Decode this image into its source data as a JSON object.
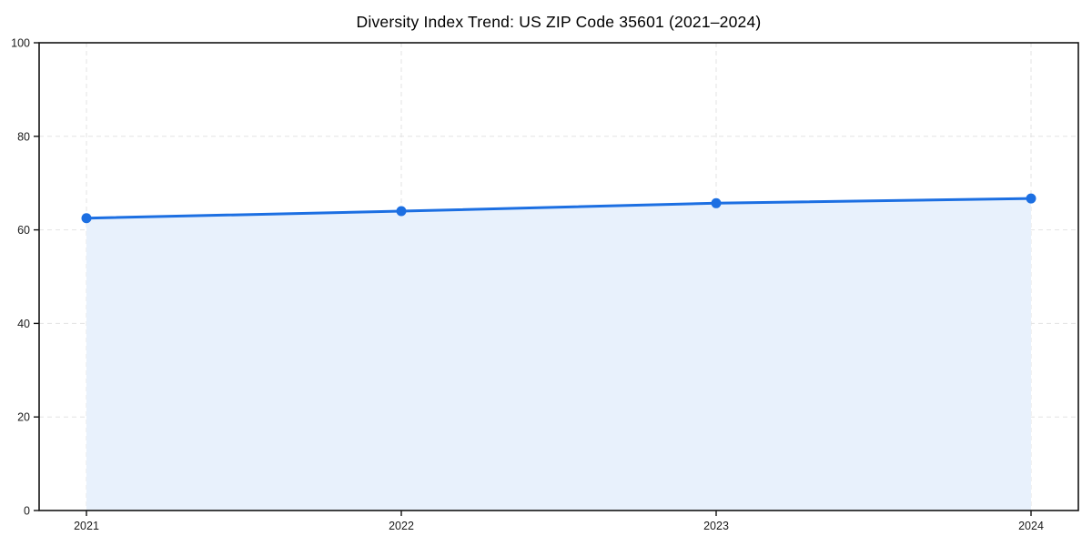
{
  "chart_data": {
    "type": "area",
    "title": "Diversity Index Trend: US ZIP Code 35601 (2021–2024)",
    "x": [
      2021,
      2022,
      2023,
      2024
    ],
    "x_tick_labels": [
      "2021",
      "2022",
      "2023",
      "2024"
    ],
    "series": [
      {
        "name": "Diversity Index",
        "values": [
          62.5,
          64.0,
          65.7,
          66.7
        ]
      }
    ],
    "ylim": [
      0,
      100
    ],
    "yticks": [
      0,
      20,
      40,
      60,
      80,
      100
    ],
    "xlabel": "",
    "ylabel": "",
    "legend_position": "none",
    "grid": "dashed, both axes",
    "colors": {
      "line": "#1c6fe2",
      "marker": "#1c6fe2",
      "fill": "#e8f1fc",
      "grid": "#e3e3e3",
      "spine": "#141414",
      "tick_label": "#1a1a1a",
      "title": "#000000"
    }
  }
}
